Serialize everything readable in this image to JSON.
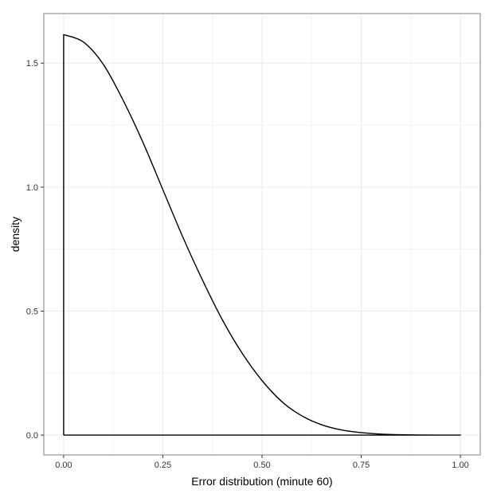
{
  "chart_data": {
    "type": "line",
    "xlabel": "Error distribution (minute 60)",
    "ylabel": "density",
    "xlim": [
      -0.05,
      1.05
    ],
    "ylim": [
      -0.08,
      1.7
    ],
    "x_ticks": [
      0.0,
      0.25,
      0.5,
      0.75,
      1.0
    ],
    "x_tick_labels": [
      "0.00",
      "0.25",
      "0.50",
      "0.75",
      "1.00"
    ],
    "y_ticks": [
      0.0,
      0.5,
      1.0,
      1.5
    ],
    "y_tick_labels": [
      "0.0",
      "0.5",
      "1.0",
      "1.5"
    ],
    "grid": true,
    "series": [
      {
        "x": [
          0.0,
          0.0,
          0.05,
          0.1,
          0.15,
          0.2,
          0.25,
          0.3,
          0.35,
          0.4,
          0.45,
          0.5,
          0.55,
          0.6,
          0.65,
          0.7,
          0.75,
          0.8,
          0.85,
          0.9,
          0.95,
          1.0,
          0.0
        ],
        "values": [
          0.0,
          1.615,
          1.585,
          1.495,
          1.35,
          1.18,
          0.99,
          0.8,
          0.625,
          0.465,
          0.33,
          0.22,
          0.135,
          0.078,
          0.042,
          0.021,
          0.01,
          0.004,
          0.0015,
          0.0005,
          0.0001,
          0.0,
          0.0
        ],
        "color": "#000000"
      }
    ],
    "colors": {
      "panel_background": "#ffffff",
      "panel_border": "#7f7f7f",
      "grid_major": "#ebebeb",
      "grid_minor": "#f5f5f5",
      "line": "#000000"
    }
  }
}
